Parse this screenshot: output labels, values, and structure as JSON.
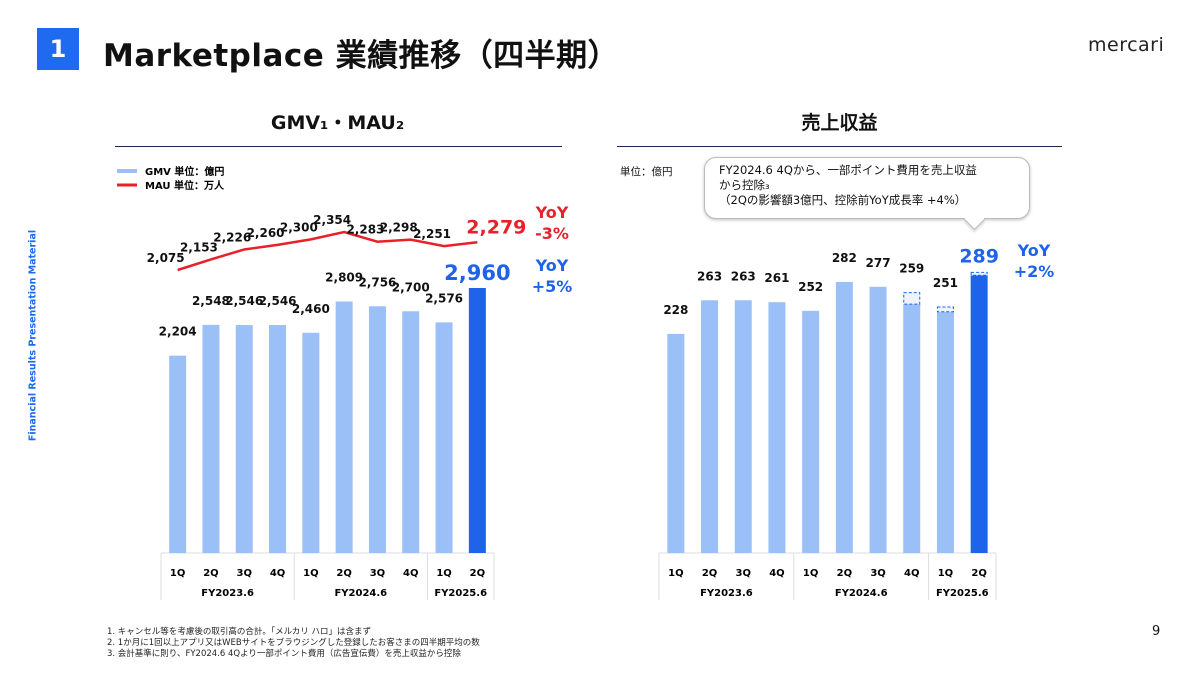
{
  "header": {
    "section_number": "1",
    "title": "Marketplace 業績推移（四半期）",
    "logo": "mercari"
  },
  "side_label": "Financial Results Presentation Material",
  "page_number": "9",
  "footnotes": [
    "1. キャンセル等を考慮後の取引高の合計。「メルカリ ハロ」は含まず",
    "2. 1か月に1回以上アプリ又はWEBサイトをブラウジングした登録したお客さまの四半期平均の数",
    "3. 会計基準に則り、FY2024.6 4Qより一部ポイント費用（広告宣伝費）を売上収益から控除"
  ],
  "colors": {
    "bar": "#9bbff7",
    "bar_highlight": "#1e63e9",
    "line": "#e8202a",
    "accent": "#1e6bf0"
  },
  "chart_data": [
    {
      "type": "bar+line",
      "section_title": "GMV₁・MAU₂",
      "categories": [
        "1Q",
        "2Q",
        "3Q",
        "4Q",
        "1Q",
        "2Q",
        "3Q",
        "4Q",
        "1Q",
        "2Q"
      ],
      "groups": [
        {
          "label": "FY2023.6",
          "count": 4
        },
        {
          "label": "FY2024.6",
          "count": 4
        },
        {
          "label": "FY2025.6",
          "count": 2
        }
      ],
      "legend": [
        {
          "name": "GMV 単位：億円",
          "kind": "bar"
        },
        {
          "name": "MAU 単位：万人",
          "kind": "line"
        }
      ],
      "series": [
        {
          "name": "GMV",
          "type": "bar",
          "values": [
            2204,
            2548,
            2546,
            2546,
            2460,
            2809,
            2756,
            2700,
            2576,
            2960
          ],
          "labels": [
            "2,204",
            "2,548",
            "2,546",
            "2,546",
            "2,460",
            "2,809",
            "2,756",
            "2,700",
            "2,576",
            "2,960"
          ]
        },
        {
          "name": "MAU",
          "type": "line",
          "values": [
            2075,
            2153,
            2226,
            2260,
            2300,
            2354,
            2283,
            2298,
            2251,
            2279
          ],
          "labels": [
            "2,075",
            "2,153",
            "2,226",
            "2,260",
            "2,300",
            "2,354",
            "2,283",
            "2,298",
            "2,251",
            "2,279"
          ]
        }
      ],
      "yoy": [
        {
          "label": "YoY",
          "value": "-3%",
          "series": "MAU"
        },
        {
          "label": "YoY",
          "value": "+5%",
          "series": "GMV"
        }
      ]
    },
    {
      "type": "bar",
      "section_title": "売上収益",
      "unit": "単位：億円",
      "categories": [
        "1Q",
        "2Q",
        "3Q",
        "4Q",
        "1Q",
        "2Q",
        "3Q",
        "4Q",
        "1Q",
        "2Q"
      ],
      "groups": [
        {
          "label": "FY2023.6",
          "count": 4
        },
        {
          "label": "FY2024.6",
          "count": 4
        },
        {
          "label": "FY2025.6",
          "count": 2
        }
      ],
      "values": [
        228,
        263,
        263,
        261,
        252,
        282,
        277,
        259,
        251,
        289
      ],
      "labels": [
        "228",
        "263",
        "263",
        "261",
        "252",
        "282",
        "277",
        "259",
        "251",
        "289"
      ],
      "deducted_points": [
        0,
        0,
        0,
        0,
        0,
        0,
        0,
        12,
        5,
        3
      ],
      "callout": [
        "FY2024.6 4Qから、一部ポイント費用を売上収益",
        "から控除₃",
        "（2Qの影響額3億円、控除前YoY成長率 +4%）"
      ],
      "yoy": {
        "label": "YoY",
        "value": "+2%"
      }
    }
  ]
}
